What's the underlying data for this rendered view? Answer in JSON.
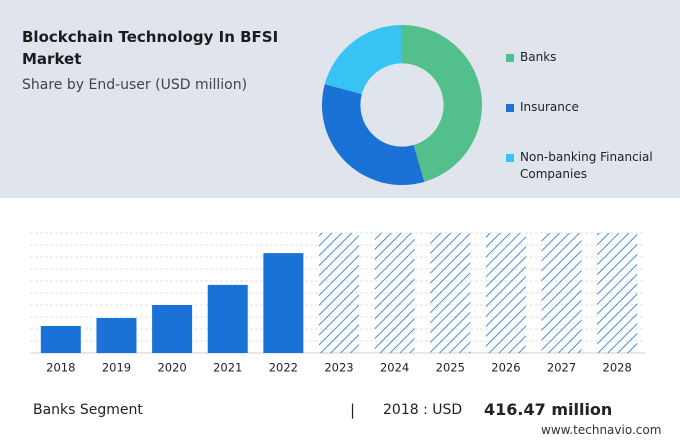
{
  "chart_data": [
    {
      "type": "pie",
      "title": "Blockchain Technology In BFSI Market",
      "subtitle": "Share by End-user (USD million)",
      "categories": [
        "Banks",
        "Insurance",
        "Non-banking Financial Companies"
      ],
      "values": [
        45.5,
        33.7,
        20.8
      ],
      "colors": [
        "#52bf8c",
        "#1a72d6",
        "#38c3f5"
      ],
      "hole": 0.52
    },
    {
      "type": "bar",
      "categories": [
        "2018",
        "2019",
        "2020",
        "2021",
        "2022",
        "2023",
        "2024",
        "2025",
        "2026",
        "2027",
        "2028"
      ],
      "values": [
        416.47,
        540,
        740,
        1050,
        1540,
        null,
        null,
        null,
        null,
        null,
        null
      ],
      "value_labels": [
        "416.47 million",
        null,
        null,
        null,
        null,
        null,
        null,
        null,
        null,
        null,
        null
      ],
      "forecast_from": 5,
      "color": "#1a72d6",
      "ylim": [
        0,
        1850
      ],
      "grid": true
    }
  ],
  "footer": {
    "segment": "Banks Segment",
    "separator": "|",
    "year_text": "2018 : USD",
    "source": "www.technavio.com"
  }
}
